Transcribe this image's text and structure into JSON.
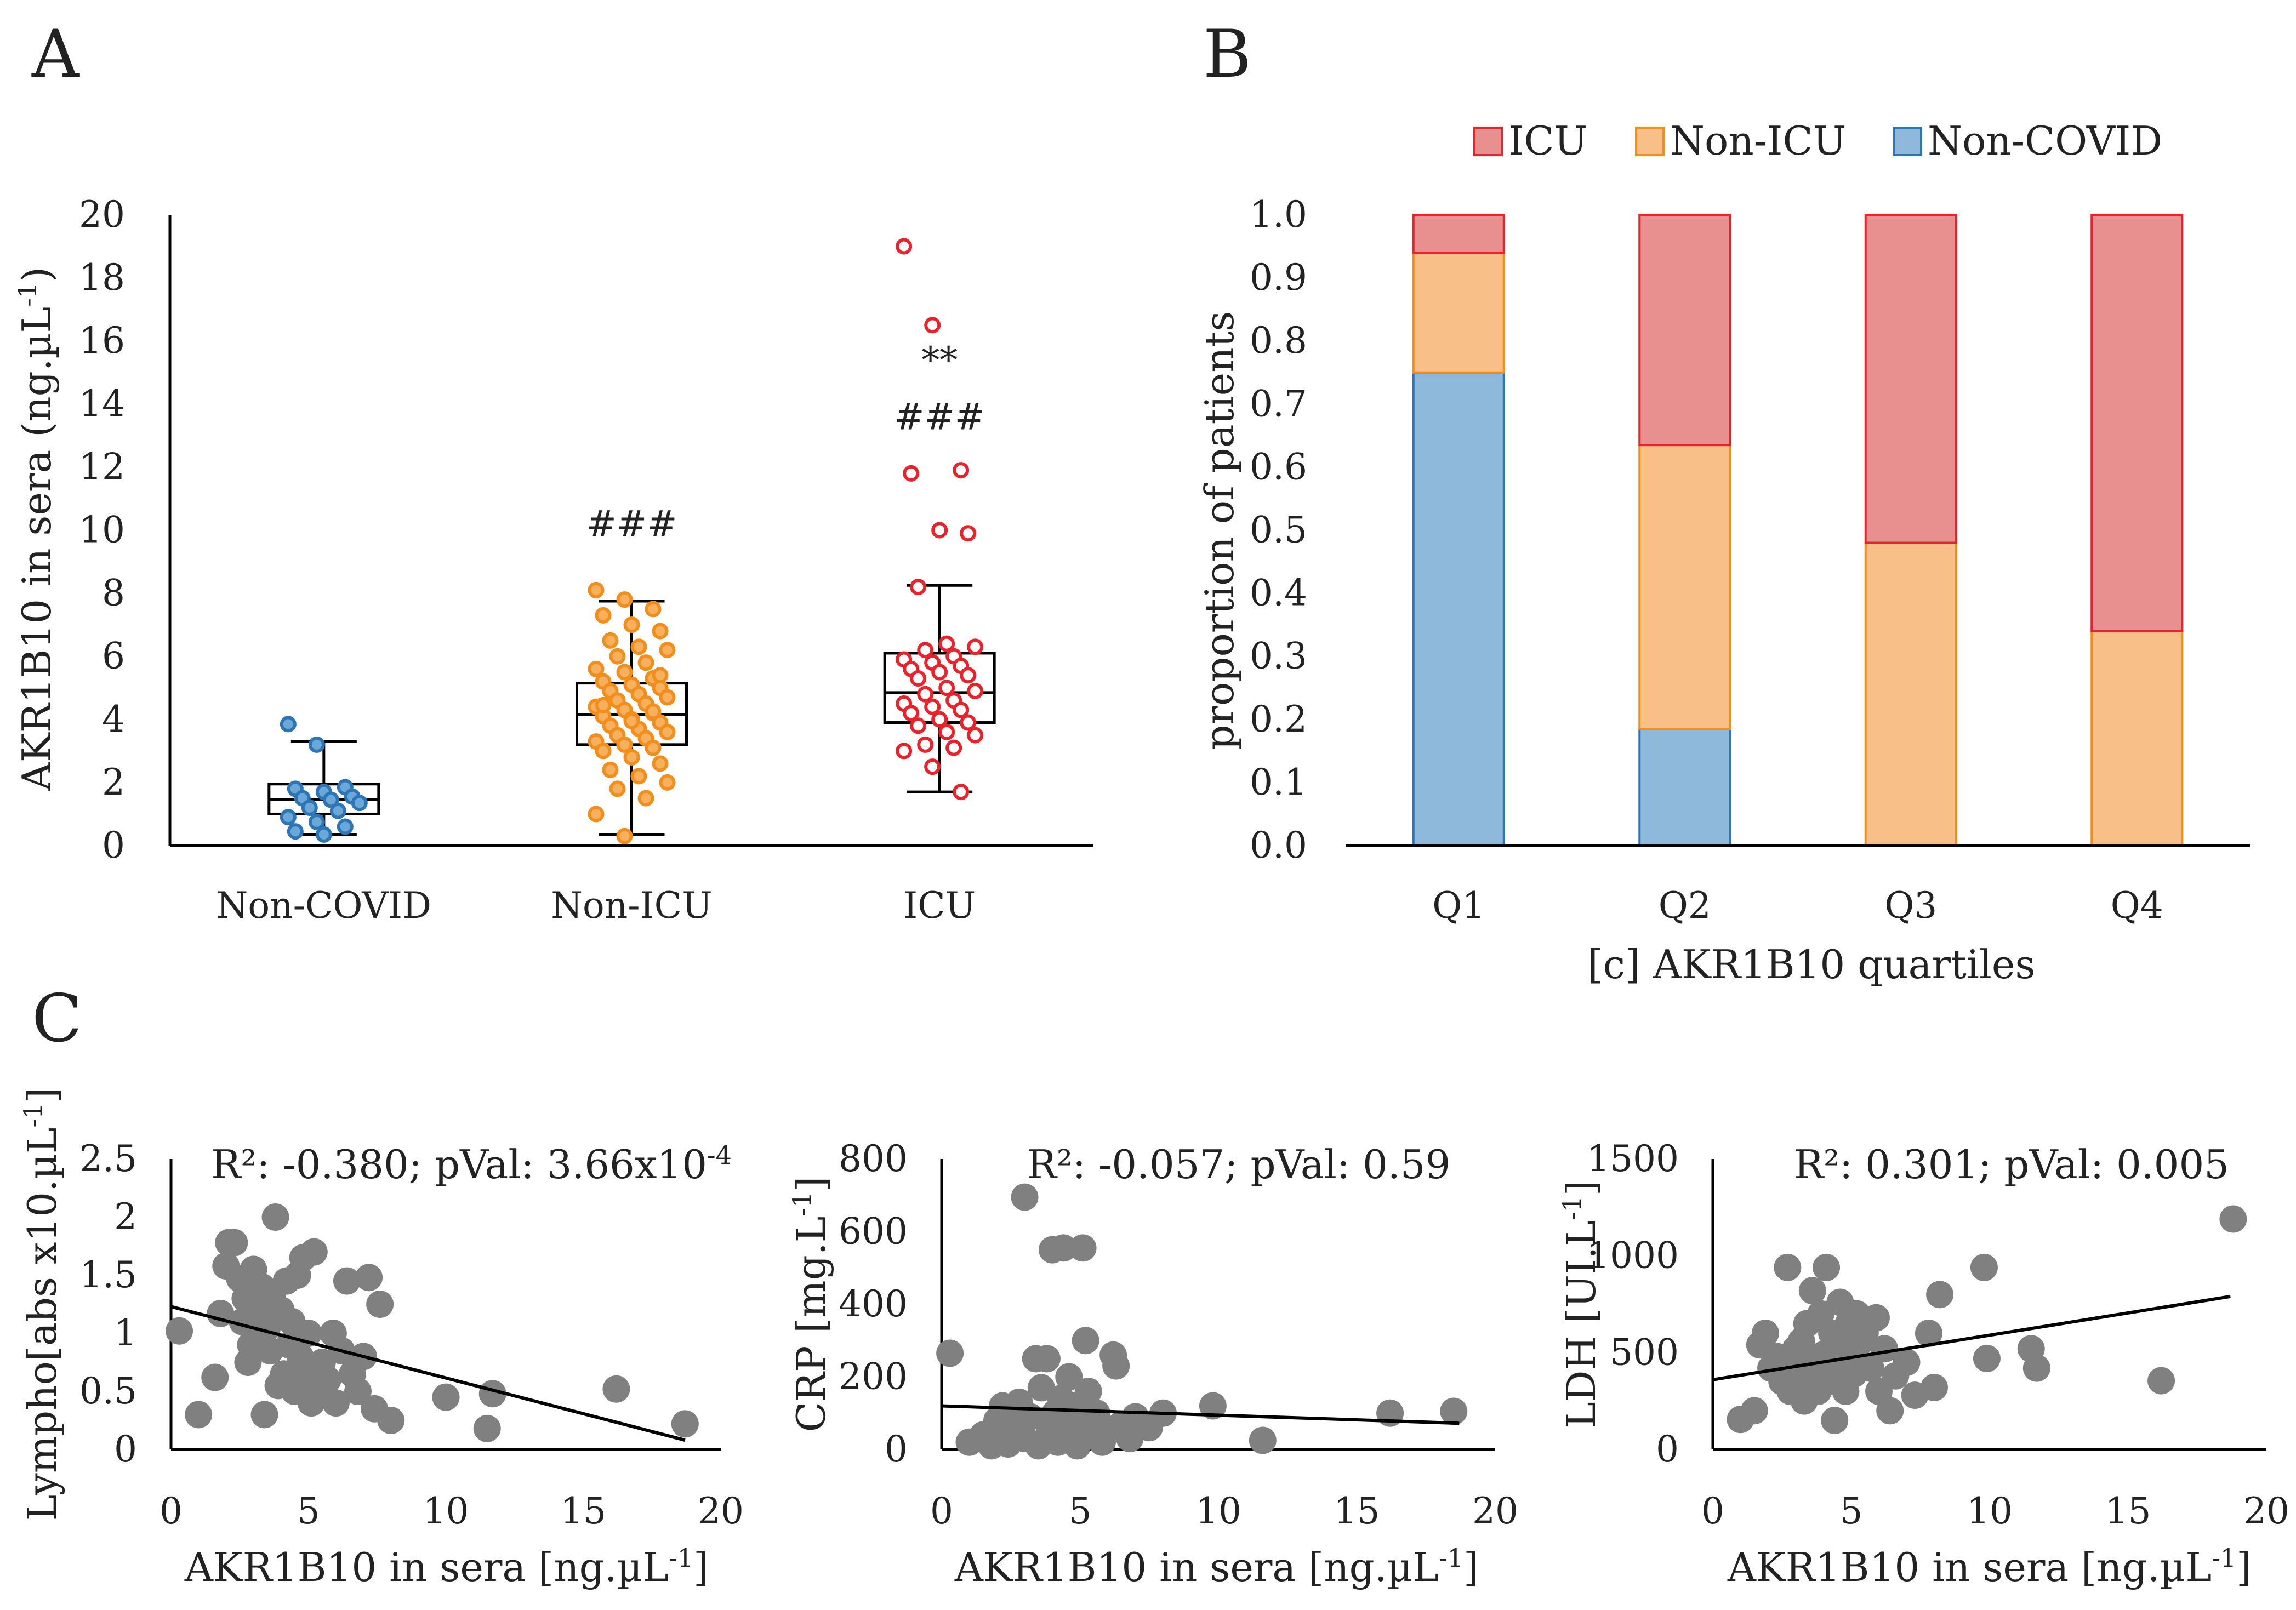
{
  "figure": {
    "panel_labels": [
      "A",
      "B",
      "C"
    ]
  },
  "colors": {
    "non_covid": "#2E75B6",
    "non_icu": "#F28E1C",
    "icu": "#E8232B",
    "non_covid_fill": "#8EB9DA",
    "non_icu_fill": "#F9BF88",
    "icu_fill": "#E8908F",
    "scatter": "#808080"
  },
  "chart_data": [
    {
      "id": "A",
      "type": "box",
      "title": "",
      "ylabel": "AKR1B10 in sera (ng.µL",
      "ylabel_sup": "-1",
      "ylabel_suffix": ")",
      "ylim": [
        0,
        20
      ],
      "yticks": [
        "0",
        "2",
        "4",
        "6",
        "8",
        "10",
        "12",
        "14",
        "16",
        "18",
        "20"
      ],
      "categories": [
        "Non-COVID",
        "Non-ICU",
        "ICU"
      ],
      "boxes": [
        {
          "name": "Non-COVID",
          "min": 0.35,
          "q1": 1.0,
          "median": 1.45,
          "q3": 1.95,
          "max": 3.3,
          "points": [
            3.85,
            3.2,
            1.85,
            1.8,
            1.7,
            1.55,
            1.5,
            1.45,
            1.35,
            1.2,
            1.1,
            0.9,
            0.75,
            0.6,
            0.45,
            0.35
          ]
        },
        {
          "name": "Non-ICU",
          "min": 0.35,
          "q1": 3.2,
          "median": 4.15,
          "q3": 5.15,
          "max": 7.75,
          "points": [
            8.1,
            7.8,
            7.5,
            7.3,
            7.0,
            6.8,
            6.5,
            6.3,
            6.2,
            6.0,
            5.8,
            5.6,
            5.5,
            5.3,
            5.2,
            5.1,
            5.0,
            4.9,
            4.8,
            4.7,
            4.6,
            4.5,
            4.4,
            4.3,
            4.2,
            4.1,
            4.0,
            3.9,
            3.8,
            3.7,
            3.6,
            3.5,
            3.4,
            3.3,
            3.2,
            3.1,
            3.0,
            2.8,
            2.6,
            2.4,
            2.2,
            2.0,
            1.8,
            1.5,
            1.0,
            0.3,
            4.25,
            4.45,
            3.95,
            5.4
          ]
        },
        {
          "name": "ICU",
          "min": 1.7,
          "q1": 3.9,
          "median": 4.85,
          "q3": 6.1,
          "max": 8.25,
          "points": [
            19.0,
            16.5,
            11.9,
            11.8,
            10.0,
            9.9,
            8.2,
            6.4,
            6.3,
            6.2,
            6.0,
            5.9,
            5.8,
            5.7,
            5.6,
            5.5,
            5.4,
            5.3,
            5.0,
            4.9,
            4.8,
            4.6,
            4.5,
            4.4,
            4.3,
            4.2,
            4.0,
            3.9,
            3.8,
            3.6,
            3.5,
            3.2,
            3.1,
            3.0,
            2.5,
            1.7
          ]
        }
      ],
      "annotations": [
        {
          "text": "###",
          "category": "Non-ICU",
          "y": 9.8
        },
        {
          "text": "###",
          "category": "ICU",
          "y": 13.2
        },
        {
          "text": "**",
          "category": "ICU",
          "y": 15.0
        }
      ]
    },
    {
      "id": "B",
      "type": "stacked_bar",
      "xlabel": "[c] AKR1B10 quartiles",
      "ylabel": "proportion of patients",
      "ylim": [
        0,
        1
      ],
      "yticks": [
        "0.0",
        "0.1",
        "0.2",
        "0.3",
        "0.4",
        "0.5",
        "0.6",
        "0.7",
        "0.8",
        "0.9",
        "1.0"
      ],
      "categories": [
        "Q1",
        "Q2",
        "Q3",
        "Q4"
      ],
      "series": [
        {
          "name": "Non-COVID",
          "values": [
            0.75,
            0.185,
            0.0,
            0.0
          ]
        },
        {
          "name": "Non-ICU",
          "values": [
            0.19,
            0.45,
            0.48,
            0.34
          ]
        },
        {
          "name": "ICU",
          "values": [
            0.06,
            0.365,
            0.52,
            0.66
          ]
        }
      ],
      "legend": [
        "ICU",
        "Non-ICU",
        "Non-COVID"
      ],
      "legend_position": "top"
    },
    {
      "id": "C1",
      "type": "scatter",
      "title": "R²: -0.380; pVal: 3.66x10",
      "title_sup": "-4",
      "xlabel": "AKR1B10 in sera [ng.µL",
      "xlabel_sup": "-1",
      "xlabel_suffix": "]",
      "ylabel": "Lympho[abs x10.µL",
      "ylabel_sup": "-1",
      "ylabel_suffix": "]",
      "xlim": [
        0,
        20
      ],
      "ylim": [
        0,
        2.5
      ],
      "xticks": [
        "0",
        "5",
        "10",
        "15",
        "20"
      ],
      "yticks": [
        "0",
        "0.5",
        "1",
        "1.5",
        "2",
        "2.5"
      ],
      "trendline": [
        [
          0,
          1.23
        ],
        [
          18.7,
          0.08
        ]
      ],
      "points": [
        [
          0.3,
          1.02
        ],
        [
          1.0,
          0.3
        ],
        [
          1.6,
          0.62
        ],
        [
          1.8,
          1.17
        ],
        [
          2.0,
          1.58
        ],
        [
          2.1,
          1.78
        ],
        [
          2.3,
          1.78
        ],
        [
          2.5,
          1.47
        ],
        [
          2.6,
          1.1
        ],
        [
          2.7,
          1.3
        ],
        [
          2.8,
          0.75
        ],
        [
          2.9,
          0.9
        ],
        [
          3.0,
          1.55
        ],
        [
          3.1,
          1.2
        ],
        [
          3.2,
          0.95
        ],
        [
          3.3,
          1.4
        ],
        [
          3.4,
          0.3
        ],
        [
          3.5,
          1.05
        ],
        [
          3.6,
          0.85
        ],
        [
          3.7,
          1.35
        ],
        [
          3.8,
          2.0
        ],
        [
          3.9,
          0.55
        ],
        [
          4.0,
          1.2
        ],
        [
          4.1,
          0.65
        ],
        [
          4.2,
          1.45
        ],
        [
          4.3,
          0.9
        ],
        [
          4.4,
          1.1
        ],
        [
          4.5,
          0.5
        ],
        [
          4.6,
          1.5
        ],
        [
          4.7,
          0.8
        ],
        [
          4.8,
          1.65
        ],
        [
          4.9,
          0.7
        ],
        [
          5.0,
          1.0
        ],
        [
          5.1,
          0.4
        ],
        [
          5.2,
          1.7
        ],
        [
          5.3,
          0.55
        ],
        [
          5.5,
          0.75
        ],
        [
          5.7,
          0.6
        ],
        [
          5.9,
          1.0
        ],
        [
          6.0,
          0.4
        ],
        [
          6.2,
          0.85
        ],
        [
          6.4,
          1.45
        ],
        [
          6.6,
          0.65
        ],
        [
          6.8,
          0.5
        ],
        [
          7.0,
          0.8
        ],
        [
          7.2,
          1.48
        ],
        [
          7.4,
          0.35
        ],
        [
          7.6,
          1.25
        ],
        [
          8.0,
          0.25
        ],
        [
          10.0,
          0.45
        ],
        [
          11.5,
          0.18
        ],
        [
          11.7,
          0.48
        ],
        [
          16.2,
          0.52
        ],
        [
          18.7,
          0.22
        ]
      ]
    },
    {
      "id": "C2",
      "type": "scatter",
      "title": "R²: -0.057; pVal: 0.59",
      "xlabel": "AKR1B10 in sera [ng.µL",
      "xlabel_sup": "-1",
      "xlabel_suffix": "]",
      "ylabel": "CRP [mg.L",
      "ylabel_sup": "-1",
      "ylabel_suffix": "]",
      "xlim": [
        0,
        20
      ],
      "ylim": [
        0,
        800
      ],
      "xticks": [
        "0",
        "5",
        "10",
        "15",
        "20"
      ],
      "yticks": [
        "0",
        "200",
        "400",
        "600",
        "800"
      ],
      "trendline": [
        [
          0,
          120
        ],
        [
          18.7,
          72
        ]
      ],
      "points": [
        [
          0.3,
          265
        ],
        [
          1.0,
          20
        ],
        [
          1.5,
          40
        ],
        [
          1.8,
          10
        ],
        [
          2.0,
          80
        ],
        [
          2.2,
          120
        ],
        [
          2.4,
          15
        ],
        [
          2.6,
          60
        ],
        [
          2.8,
          130
        ],
        [
          3.0,
          30
        ],
        [
          3.0,
          695
        ],
        [
          3.2,
          90
        ],
        [
          3.4,
          250
        ],
        [
          3.5,
          10
        ],
        [
          3.6,
          170
        ],
        [
          3.8,
          250
        ],
        [
          3.9,
          50
        ],
        [
          4.0,
          550
        ],
        [
          4.1,
          100
        ],
        [
          4.2,
          20
        ],
        [
          4.3,
          140
        ],
        [
          4.4,
          555
        ],
        [
          4.5,
          60
        ],
        [
          4.6,
          200
        ],
        [
          4.7,
          30
        ],
        [
          4.8,
          120
        ],
        [
          4.9,
          10
        ],
        [
          5.0,
          80
        ],
        [
          5.1,
          555
        ],
        [
          5.2,
          300
        ],
        [
          5.3,
          160
        ],
        [
          5.4,
          40
        ],
        [
          5.6,
          100
        ],
        [
          5.8,
          20
        ],
        [
          6.0,
          50
        ],
        [
          6.2,
          260
        ],
        [
          6.3,
          230
        ],
        [
          6.5,
          70
        ],
        [
          6.8,
          30
        ],
        [
          7.0,
          90
        ],
        [
          7.5,
          60
        ],
        [
          8.0,
          100
        ],
        [
          9.8,
          120
        ],
        [
          11.6,
          25
        ],
        [
          16.2,
          100
        ],
        [
          18.5,
          105
        ]
      ]
    },
    {
      "id": "C3",
      "type": "scatter",
      "title": "R²: 0.301; pVal: 0.005",
      "xlabel": "AKR1B10 in sera [ng.µL",
      "xlabel_sup": "-1",
      "xlabel_suffix": "]",
      "ylabel": "LDH  [UI.L",
      "ylabel_sup": "-1",
      "ylabel_suffix": "]",
      "xlim": [
        0,
        20
      ],
      "ylim": [
        0,
        1500
      ],
      "xticks": [
        "0",
        "5",
        "10",
        "15",
        "20"
      ],
      "yticks": [
        "0",
        "500",
        "1000",
        "1500"
      ],
      "trendline": [
        [
          0,
          360
        ],
        [
          18.7,
          790
        ]
      ],
      "points": [
        [
          1.0,
          155
        ],
        [
          1.5,
          200
        ],
        [
          1.7,
          540
        ],
        [
          1.9,
          600
        ],
        [
          2.1,
          420
        ],
        [
          2.3,
          480
        ],
        [
          2.5,
          350
        ],
        [
          2.7,
          940
        ],
        [
          2.8,
          300
        ],
        [
          3.0,
          520
        ],
        [
          3.1,
          410
        ],
        [
          3.2,
          560
        ],
        [
          3.3,
          250
        ],
        [
          3.4,
          650
        ],
        [
          3.5,
          380
        ],
        [
          3.6,
          820
        ],
        [
          3.7,
          450
        ],
        [
          3.8,
          300
        ],
        [
          3.9,
          700
        ],
        [
          4.0,
          490
        ],
        [
          4.1,
          940
        ],
        [
          4.2,
          350
        ],
        [
          4.3,
          600
        ],
        [
          4.4,
          150
        ],
        [
          4.5,
          420
        ],
        [
          4.6,
          760
        ],
        [
          4.7,
          530
        ],
        [
          4.8,
          300
        ],
        [
          4.9,
          650
        ],
        [
          5.0,
          480
        ],
        [
          5.1,
          390
        ],
        [
          5.2,
          700
        ],
        [
          5.3,
          550
        ],
        [
          5.5,
          600
        ],
        [
          5.7,
          420
        ],
        [
          5.9,
          680
        ],
        [
          6.0,
          300
        ],
        [
          6.2,
          520
        ],
        [
          6.4,
          200
        ],
        [
          6.6,
          380
        ],
        [
          7.0,
          450
        ],
        [
          7.3,
          280
        ],
        [
          7.8,
          600
        ],
        [
          8.0,
          320
        ],
        [
          8.2,
          800
        ],
        [
          9.8,
          940
        ],
        [
          9.9,
          470
        ],
        [
          11.5,
          520
        ],
        [
          11.7,
          420
        ],
        [
          16.2,
          355
        ],
        [
          18.8,
          1190
        ]
      ]
    }
  ]
}
